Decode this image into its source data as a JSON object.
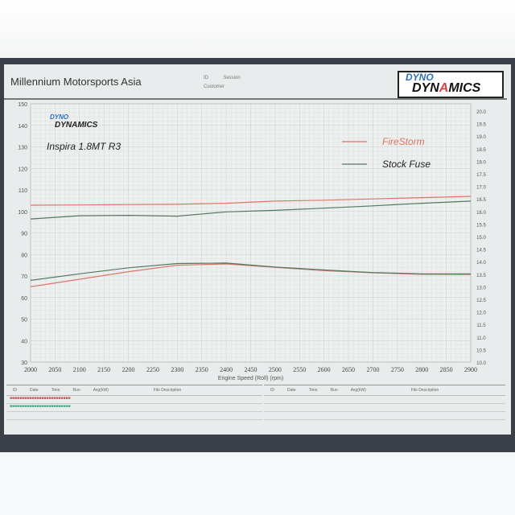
{
  "header": {
    "company": "Millennium Motorsports Asia",
    "id_label": "ID",
    "session_label": "Session",
    "customer_label": "Customer"
  },
  "logo": {
    "line1": "DYNO",
    "line2a": "DYN",
    "line2b": "A",
    "line2c": "MICS"
  },
  "chart_data": {
    "type": "line",
    "title": "Inspira 1.8MT R3",
    "xlabel": "Engine Speed (Roll) (rpm)",
    "x_ticks": [
      "2000",
      "2050",
      "2100",
      "2150",
      "2200",
      "2250",
      "2300",
      "2350",
      "2400",
      "2450",
      "2500",
      "2550",
      "2600",
      "2650",
      "2700",
      "2750",
      "2800",
      "2850",
      "2900"
    ],
    "xlim": [
      2000,
      2900
    ],
    "y_left_ticks": [
      "150",
      "140",
      "130",
      "120",
      "110",
      "100",
      "90",
      "80",
      "70",
      "60",
      "50",
      "40",
      "30"
    ],
    "ylim_left": [
      30,
      150
    ],
    "y_right_ticks": [
      "20.0",
      "19.5",
      "19.0",
      "18.5",
      "18.0",
      "17.5",
      "17.0",
      "16.5",
      "16.0",
      "15.5",
      "15.0",
      "14.5",
      "14.0",
      "13.5",
      "13.0",
      "12.5",
      "12.0",
      "11.5",
      "11.0",
      "10.5",
      "10.0"
    ],
    "ylim_right": [
      10,
      20
    ],
    "grid": true,
    "legend_placement": "top-right",
    "x": [
      2000,
      2100,
      2200,
      2300,
      2400,
      2500,
      2600,
      2700,
      2800,
      2900
    ],
    "series": [
      {
        "name": "FireStorm",
        "color": "#d9776a",
        "group": "upper",
        "values": [
          102.9,
          103.0,
          103.2,
          103.3,
          103.8,
          104.8,
          105.2,
          105.8,
          106.4,
          107.0
        ]
      },
      {
        "name": "Stock Fuse",
        "color": "#4f7a5e",
        "group": "upper",
        "values": [
          96.5,
          98.0,
          98.2,
          97.8,
          99.8,
          100.5,
          101.5,
          102.6,
          103.8,
          104.8
        ]
      },
      {
        "name": "FireStorm",
        "color": "#d9776a",
        "group": "lower",
        "values": [
          65.0,
          68.5,
          72.0,
          75.0,
          75.6,
          74.0,
          72.5,
          71.5,
          70.8,
          70.7
        ]
      },
      {
        "name": "Stock Fuse",
        "color": "#4f7a5e",
        "group": "lower",
        "values": [
          68.0,
          71.0,
          73.8,
          75.8,
          76.0,
          74.2,
          72.8,
          71.6,
          71.0,
          71.0
        ]
      }
    ]
  },
  "table": {
    "headers": [
      "ID",
      "Date",
      "Time",
      "Run",
      "Avg(kW)",
      "File Description"
    ],
    "rows": [
      {
        "color": "#c55"
      },
      {
        "color": "#4a8"
      }
    ]
  }
}
